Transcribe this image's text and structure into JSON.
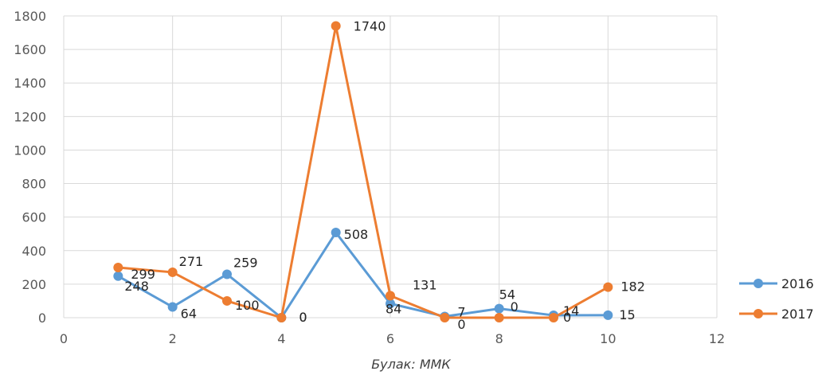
{
  "chart_data": {
    "type": "scatter",
    "title": "",
    "xlabel": "",
    "ylabel": "",
    "xlim": [
      0,
      12
    ],
    "ylim": [
      0,
      1800
    ],
    "x_ticks": [
      0,
      2,
      4,
      6,
      8,
      10,
      12
    ],
    "y_ticks": [
      0,
      200,
      400,
      600,
      800,
      1000,
      1200,
      1400,
      1600,
      1800
    ],
    "grid": true,
    "legend_position": "right",
    "x": [
      1,
      2,
      3,
      4,
      5,
      6,
      7,
      8,
      9,
      10
    ],
    "series": [
      {
        "name": "2016",
        "color": "#5B9BD5",
        "values": [
          248,
          64,
          259,
          0,
          508,
          84,
          7,
          54,
          14,
          15
        ],
        "labels": [
          "248",
          "64",
          "259",
          "0",
          "508",
          "84",
          "7",
          "54",
          "14",
          "15"
        ]
      },
      {
        "name": "2017",
        "color": "#ED7D31",
        "values": [
          299,
          271,
          100,
          0,
          1740,
          131,
          0,
          0,
          0,
          182
        ],
        "labels": [
          "299",
          "271",
          "100",
          "0",
          "1740",
          "131",
          "0",
          "0",
          "0",
          "182"
        ]
      }
    ]
  },
  "source": "Булак: ММК"
}
